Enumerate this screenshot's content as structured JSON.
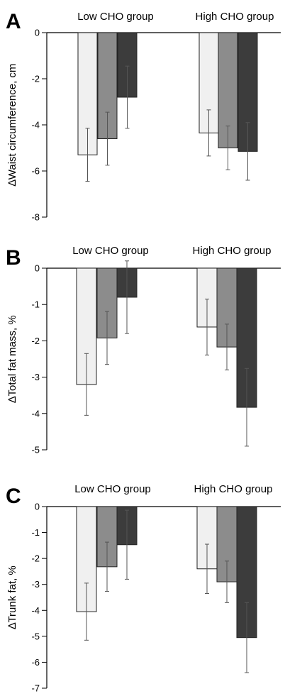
{
  "chart_data": [
    {
      "type": "bar",
      "panel_label": "A",
      "ylabel": "∆Waist circumference, cm",
      "ylim": [
        -8,
        0
      ],
      "yticks": [
        0,
        -2,
        -4,
        -6,
        -8
      ],
      "ytick_labels": [
        "0",
        "-2",
        "-4",
        "-6",
        "-8"
      ],
      "groups": [
        {
          "label": "Low CHO group",
          "values": [
            -5.3,
            -4.6,
            -2.8
          ],
          "errors": [
            1.15,
            1.15,
            1.35
          ]
        },
        {
          "label": "High CHO group",
          "values": [
            -4.35,
            -5.0,
            -5.15
          ],
          "errors": [
            1.0,
            0.95,
            1.25
          ]
        }
      ],
      "bar_colors": [
        "#f0f0f0",
        "#8c8c8c",
        "#3c3c3c"
      ],
      "grid": false,
      "legend": false
    },
    {
      "type": "bar",
      "panel_label": "B",
      "ylabel": "∆Total fat mass, %",
      "ylim": [
        -5,
        0
      ],
      "yticks": [
        0,
        -1,
        -2,
        -3,
        -4,
        -5
      ],
      "ytick_labels": [
        "0",
        "-1",
        "-2",
        "-3",
        "-4",
        "-5"
      ],
      "groups": [
        {
          "label": "Low CHO group",
          "values": [
            -3.2,
            -1.92,
            -0.8
          ],
          "errors": [
            0.85,
            0.73,
            1.0
          ]
        },
        {
          "label": "High CHO group",
          "values": [
            -1.62,
            -2.17,
            -3.83
          ],
          "errors": [
            0.77,
            0.63,
            1.07
          ]
        }
      ],
      "bar_colors": [
        "#f0f0f0",
        "#8c8c8c",
        "#3c3c3c"
      ],
      "grid": false,
      "legend": false
    },
    {
      "type": "bar",
      "panel_label": "C",
      "ylabel": "∆Trunk fat, %",
      "ylim": [
        -7,
        0
      ],
      "yticks": [
        0,
        -1,
        -2,
        -3,
        -4,
        -5,
        -6,
        -7
      ],
      "ytick_labels": [
        "0",
        "-1",
        "-2",
        "-3",
        "-4",
        "-5",
        "-6",
        "-7"
      ],
      "groups": [
        {
          "label": "Low CHO group",
          "values": [
            -4.05,
            -2.32,
            -1.47
          ],
          "errors": [
            1.1,
            0.95,
            1.33
          ]
        },
        {
          "label": "High CHO group",
          "values": [
            -2.4,
            -2.9,
            -5.05
          ],
          "errors": [
            0.95,
            0.8,
            1.35
          ]
        }
      ],
      "bar_colors": [
        "#f0f0f0",
        "#8c8c8c",
        "#3c3c3c"
      ],
      "grid": false,
      "legend": false
    }
  ]
}
